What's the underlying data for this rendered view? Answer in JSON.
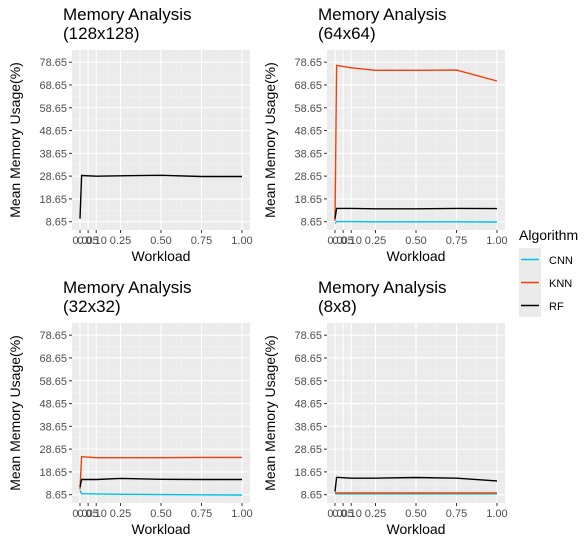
{
  "legend": {
    "title": "Algorithm",
    "placement": "right",
    "entries": [
      {
        "name": "CNN",
        "color": "#00bfe8"
      },
      {
        "name": "KNN",
        "color": "#f0400a"
      },
      {
        "name": "RF",
        "color": "#000000"
      }
    ]
  },
  "chart_data": [
    {
      "type": "line",
      "title": "Memory Analysis\n(128x128)",
      "xlabel": "Workload",
      "ylabel": "Mean Memory Usage(%)",
      "xlim": [
        0,
        1
      ],
      "ylim": [
        5,
        84
      ],
      "xticks": [
        0.0,
        0.05,
        0.1,
        0.25,
        0.5,
        0.75,
        1.0
      ],
      "xtick_labels": [
        "0.0",
        "0.05",
        "0.10",
        "0.25",
        "0.50",
        "0.75",
        "1.00"
      ],
      "yticks": [
        8.65,
        18.65,
        28.65,
        38.65,
        48.65,
        58.65,
        68.65,
        78.65
      ],
      "grid": true,
      "series": [
        {
          "name": "RF",
          "x": [
            0.0,
            0.01,
            0.1,
            0.25,
            0.5,
            0.75,
            1.0
          ],
          "y": [
            10.0,
            28.9,
            28.6,
            28.8,
            29.0,
            28.5,
            28.5
          ]
        }
      ]
    },
    {
      "type": "line",
      "title": "Memory Analysis\n(64x64)",
      "xlabel": "Workload",
      "ylabel": "Mean Memory Usage(%)",
      "xlim": [
        0,
        1
      ],
      "ylim": [
        5,
        84
      ],
      "xticks": [
        0.0,
        0.05,
        0.1,
        0.25,
        0.5,
        0.75,
        1.0
      ],
      "xtick_labels": [
        "0.0",
        "0.05",
        "0.10",
        "0.25",
        "0.50",
        "0.75",
        "1.00"
      ],
      "yticks": [
        8.65,
        18.65,
        28.65,
        38.65,
        48.65,
        58.65,
        68.65,
        78.65
      ],
      "grid": true,
      "series": [
        {
          "name": "CNN",
          "x": [
            0.0,
            0.01,
            0.1,
            0.25,
            0.5,
            0.75,
            1.0
          ],
          "y": [
            8.0,
            8.7,
            8.7,
            8.6,
            8.6,
            8.6,
            8.5
          ]
        },
        {
          "name": "KNN",
          "x": [
            0.0,
            0.01,
            0.1,
            0.25,
            0.5,
            0.75,
            1.0
          ],
          "y": [
            9.0,
            77.3,
            76.2,
            75.1,
            75.1,
            75.2,
            70.4
          ]
        },
        {
          "name": "RF",
          "x": [
            0.0,
            0.01,
            0.1,
            0.25,
            0.5,
            0.75,
            1.0
          ],
          "y": [
            10.0,
            14.5,
            14.5,
            14.3,
            14.3,
            14.5,
            14.4
          ]
        }
      ]
    },
    {
      "type": "line",
      "title": "Memory Analysis\n(32x32)",
      "xlabel": "Workload",
      "ylabel": "Mean Memory Usage(%)",
      "xlim": [
        0,
        1
      ],
      "ylim": [
        5,
        84
      ],
      "xticks": [
        0.0,
        0.05,
        0.1,
        0.25,
        0.5,
        0.75,
        1.0
      ],
      "xtick_labels": [
        "0.0",
        "0.05",
        "0.10",
        "0.25",
        "0.50",
        "0.75",
        "1.00"
      ],
      "yticks": [
        8.65,
        18.65,
        28.65,
        38.65,
        48.65,
        58.65,
        68.65,
        78.65
      ],
      "grid": true,
      "series": [
        {
          "name": "CNN",
          "x": [
            0.0,
            0.01,
            0.1,
            0.25,
            0.5,
            0.75,
            1.0
          ],
          "y": [
            10.5,
            9.1,
            9.0,
            8.8,
            8.7,
            8.6,
            8.5
          ]
        },
        {
          "name": "KNN",
          "x": [
            0.0,
            0.01,
            0.1,
            0.25,
            0.5,
            0.75,
            1.0
          ],
          "y": [
            11.0,
            25.3,
            24.9,
            24.9,
            24.9,
            25.0,
            25.0
          ]
        },
        {
          "name": "RF",
          "x": [
            0.0,
            0.01,
            0.1,
            0.25,
            0.5,
            0.75,
            1.0
          ],
          "y": [
            12.0,
            15.3,
            15.3,
            15.8,
            15.4,
            15.3,
            15.3
          ]
        }
      ]
    },
    {
      "type": "line",
      "title": "Memory Analysis\n(8x8)",
      "xlabel": "Workload",
      "ylabel": "Mean Memory Usage(%)",
      "xlim": [
        0,
        1
      ],
      "ylim": [
        5,
        84
      ],
      "xticks": [
        0.0,
        0.05,
        0.1,
        0.25,
        0.5,
        0.75,
        1.0
      ],
      "xtick_labels": [
        "0.0",
        "0.05",
        "0.10",
        "0.25",
        "0.50",
        "0.75",
        "1.00"
      ],
      "yticks": [
        8.65,
        18.65,
        28.65,
        38.65,
        48.65,
        58.65,
        68.65,
        78.65
      ],
      "grid": true,
      "series": [
        {
          "name": "CNN",
          "x": [
            0.0,
            0.01,
            0.1,
            0.25,
            0.5,
            0.75,
            1.0
          ],
          "y": [
            9.2,
            9.0,
            9.0,
            9.0,
            9.0,
            9.0,
            9.0
          ]
        },
        {
          "name": "KNN",
          "x": [
            0.0,
            0.01,
            0.1,
            0.25,
            0.5,
            0.75,
            1.0
          ],
          "y": [
            9.6,
            9.4,
            9.4,
            9.4,
            9.4,
            9.4,
            9.4
          ]
        },
        {
          "name": "RF",
          "x": [
            0.0,
            0.01,
            0.1,
            0.25,
            0.5,
            0.75,
            1.0
          ],
          "y": [
            10.0,
            16.3,
            15.9,
            15.9,
            16.2,
            15.9,
            14.7
          ]
        }
      ]
    }
  ]
}
